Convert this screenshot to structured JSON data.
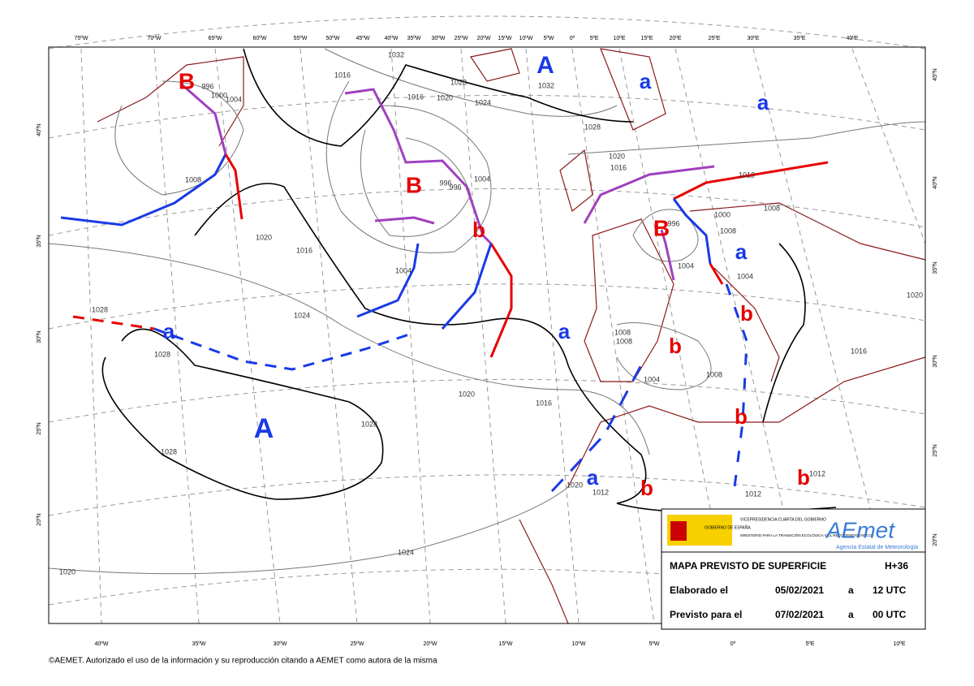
{
  "longitudes_top": [
    "75ºW",
    "70ºW",
    "65ºW",
    "60ºW",
    "55ºW",
    "50ºW",
    "45ºW",
    "40ºW",
    "35ºW",
    "30ºW",
    "25ºW",
    "20ºW",
    "15ºW",
    "10ºW",
    "5ºW",
    "0º",
    "5ºE",
    "10ºE",
    "15ºE",
    "20ºE",
    "25ºE",
    "30ºE",
    "35ºE",
    "40ºE"
  ],
  "longitudes_bottom": [
    "40ºW",
    "35ºW",
    "30ºW",
    "25ºW",
    "20ºW",
    "15ºW",
    "10ºW",
    "5ºW",
    "0º",
    "5ºE",
    "10ºE"
  ],
  "latitudes_left": [
    "40ºN",
    "35ºN",
    "30ºN",
    "25ºN",
    "20ºN"
  ],
  "latitudes_right": [
    "45ºN",
    "40ºN",
    "35ºN",
    "30ºN",
    "25ºN",
    "20ºN"
  ],
  "centers": [
    "A",
    "A",
    "a",
    "a",
    "B",
    "B",
    "B",
    "b",
    "a",
    "b",
    "a",
    "a",
    "b",
    "b",
    "a",
    "b",
    "b"
  ],
  "isobar_labels": [
    "1032",
    "1028",
    "1032",
    "1028",
    "1016",
    "1016",
    "1020",
    "1024",
    "1000",
    "1004",
    "996",
    "1008",
    "1020",
    "1016",
    "1024",
    "1004",
    "996",
    "996",
    "1004",
    "1012",
    "1020",
    "1016",
    "1008",
    "1000",
    "1008",
    "1004",
    "1004",
    "996",
    "1008",
    "1008",
    "1004",
    "1008",
    "1016",
    "1020",
    "1016",
    "1028",
    "1028",
    "1028",
    "1028",
    "1020",
    "1012",
    "1012",
    "1012",
    "1024",
    "1020",
    "1020"
  ],
  "info_box": {
    "gov_name": "GOBIERNO DE ESPAÑA",
    "vice": "VICEPRESIDENCIA CUARTA DEL GOBIERNO",
    "ministry": "MINISTERIO PARA LA TRANSICIÓN ECOLÓGICA Y EL RETO DEMOGRÁFICO",
    "agency_logo": "AEmet",
    "agency_name": "Agencia Estatal de Meteorología",
    "title": "MAPA PREVISTO DE SUPERFICIE",
    "lead": "H+36",
    "made_label": "Elaborado el",
    "made_date": "05/02/2021",
    "made_at": "a",
    "made_time": "12 UTC",
    "valid_label": "Previsto para el",
    "valid_date": "07/02/2021",
    "valid_at": "a",
    "valid_time": "00 UTC"
  },
  "footer": "©AEMET. Autorizado el uso de la información y su reproducción citando a AEMET como autora de la misma"
}
